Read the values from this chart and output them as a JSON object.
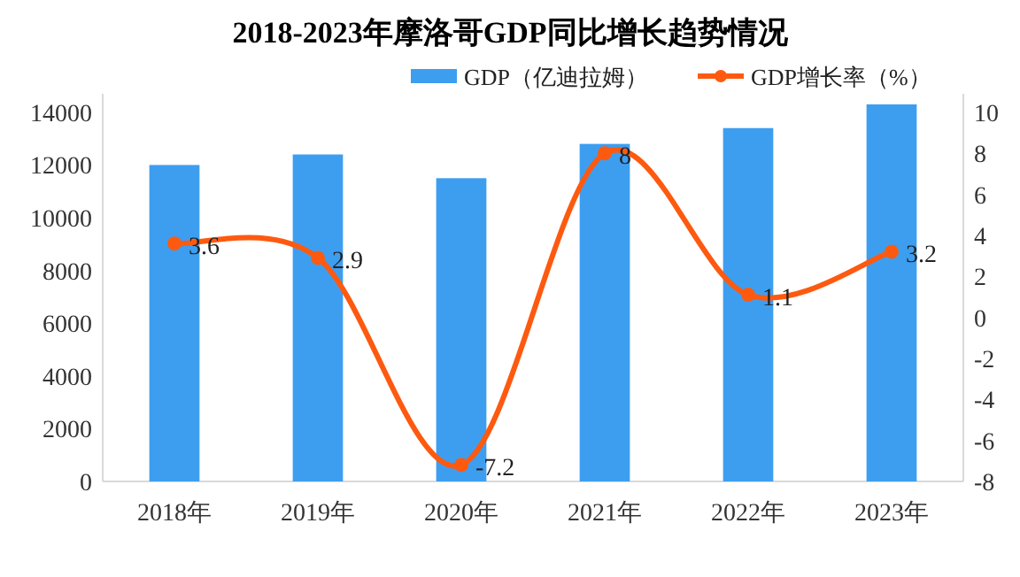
{
  "chart_data": {
    "type": "bar",
    "title": "2018-2023年摩洛哥GDP同比增长趋势情况",
    "categories": [
      "2018年",
      "2019年",
      "2020年",
      "2021年",
      "2022年",
      "2023年"
    ],
    "series": [
      {
        "name": "GDP（亿迪拉姆）",
        "color": "#3d9ef0",
        "values": [
          12000,
          12400,
          11500,
          12800,
          13400,
          14300
        ]
      },
      {
        "name": "GDP增长率（%）",
        "color": "#fd5a10",
        "type": "line",
        "axis": "y2",
        "marker": "circle",
        "data_labels": true,
        "values": [
          3.6,
          2.9,
          -7.2,
          8,
          1.1,
          3.2
        ]
      }
    ],
    "ylim": [
      0,
      14700
    ],
    "yticks": [
      0,
      2000,
      4000,
      6000,
      8000,
      10000,
      12000,
      14000
    ],
    "y2lim": [
      -8,
      10.9
    ],
    "y2ticks": [
      -8,
      -6,
      -4,
      -2,
      0,
      2,
      4,
      6,
      8,
      10
    ],
    "legend": "top",
    "grid": false
  }
}
